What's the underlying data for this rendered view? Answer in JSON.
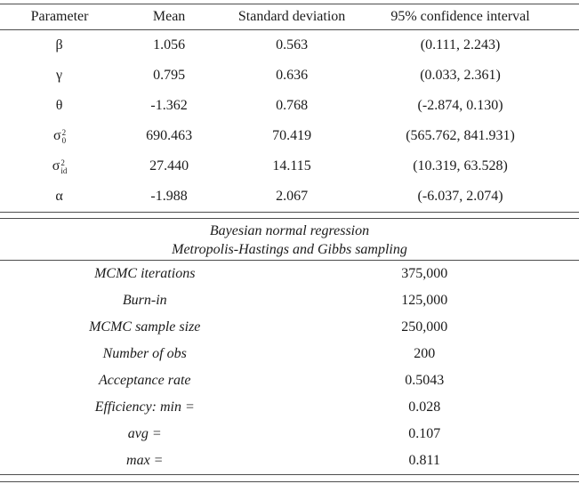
{
  "colors": {
    "background": "#ffffff",
    "text": "#1b1b1b",
    "rule": "#4d4d4d"
  },
  "table1": {
    "headers": {
      "parameter": "Parameter",
      "mean": "Mean",
      "sd": "Standard deviation",
      "ci": "95% confidence interval"
    },
    "rows": [
      {
        "param": "β",
        "sup": "",
        "sub": "",
        "mean": "1.056",
        "sd": "0.563",
        "ci": "(0.111, 2.243)"
      },
      {
        "param": "γ",
        "sup": "",
        "sub": "",
        "mean": "0.795",
        "sd": "0.636",
        "ci": "(0.033, 2.361)"
      },
      {
        "param": "θ",
        "sup": "",
        "sub": "",
        "mean": "-1.362",
        "sd": "0.768",
        "ci": "(-2.874, 0.130)"
      },
      {
        "param": "σ",
        "sup": "2",
        "sub": "0",
        "mean": "690.463",
        "sd": "70.419",
        "ci": "(565.762, 841.931)"
      },
      {
        "param": "σ",
        "sup": "2",
        "sub": "id",
        "mean": "27.440",
        "sd": "14.115",
        "ci": "(10.319, 63.528)"
      },
      {
        "param": "α",
        "sup": "",
        "sub": "",
        "mean": "-1.988",
        "sd": "2.067",
        "ci": "(-6.037, 2.074)"
      }
    ]
  },
  "table2": {
    "title": {
      "line1": "Bayesian normal regression",
      "line2": "Metropolis-Hastings and Gibbs sampling"
    },
    "rows": [
      {
        "label": "MCMC iterations",
        "value": "375,000"
      },
      {
        "label": "Burn-in",
        "value": "125,000"
      },
      {
        "label": "MCMC sample size",
        "value": "250,000"
      },
      {
        "label": "Number of obs",
        "value": "200"
      },
      {
        "label": "Acceptance rate",
        "value": "0.5043"
      },
      {
        "label": "Efficiency: min =",
        "value": "0.028"
      },
      {
        "label": "avg =",
        "value": "0.107"
      },
      {
        "label": "max =",
        "value": "0.811"
      }
    ]
  }
}
